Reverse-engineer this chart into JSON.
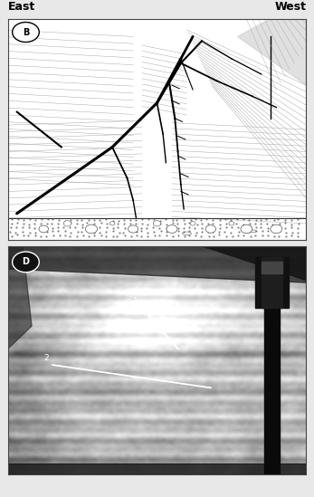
{
  "bg_color": "#e8e8e8",
  "label_east": "East",
  "label_west": "West",
  "label_b": "B",
  "label_d": "D",
  "font_size_label": 9,
  "font_size_panel": 7
}
